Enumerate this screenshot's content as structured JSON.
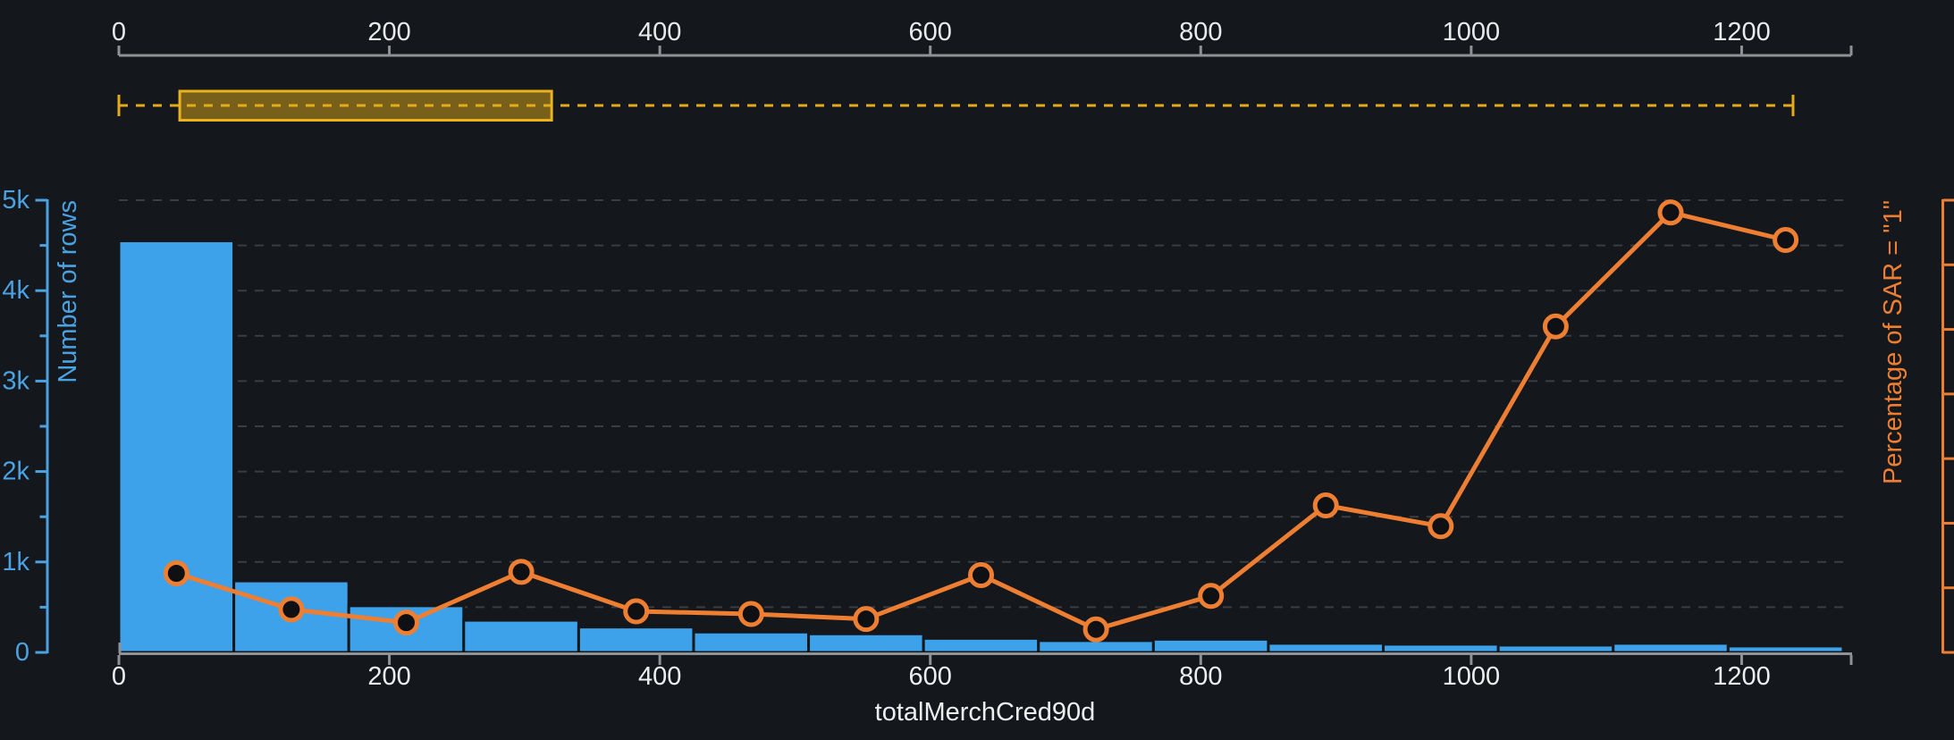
{
  "page": {
    "background": "#14171b"
  },
  "top_ruler": {
    "axis_color": "#8f9295",
    "label_color": "#e9eaeb",
    "tick_values": [
      0,
      200,
      400,
      600,
      800,
      1000,
      1200
    ],
    "tick_labels": [
      "0",
      "200",
      "400",
      "600",
      "800",
      "1000",
      "1200"
    ],
    "range_max": 1281
  },
  "range_brush": {
    "whisker_min": 0,
    "whisker_max": 1238,
    "box_start": 45,
    "box_end": 320,
    "line_color": "#e3aa1c",
    "box_border_color": "#eab31e",
    "box_fill": "rgba(230,175,25,0.48)"
  },
  "chart_data": {
    "type": "bar",
    "subtype": "histogram-with-line-overlay",
    "xlabel": "totalMerchCred90d",
    "ylabel_left": "Number of rows",
    "ylabel_right": "Percentage of SAR = \"1\"",
    "x_range": [
      0,
      1281
    ],
    "x_tick_values": [
      0,
      200,
      400,
      600,
      800,
      1000,
      1200
    ],
    "x_tick_labels": [
      "0",
      "200",
      "400",
      "600",
      "800",
      "1000",
      "1200"
    ],
    "y_left_range": [
      0,
      5000
    ],
    "y_left_tick_values": [
      0,
      1000,
      2000,
      3000,
      4000,
      5000
    ],
    "y_left_tick_labels": [
      "0",
      "1k",
      "2k",
      "3k",
      "4k",
      "5k"
    ],
    "grid": "horizontal dashed every 500 rows",
    "legend_position": "none",
    "bins": {
      "start": 0,
      "width": 85,
      "count": 15
    },
    "categories": [
      "0-85",
      "85-170",
      "170-255",
      "255-340",
      "340-425",
      "425-510",
      "510-595",
      "595-680",
      "680-765",
      "765-850",
      "850-935",
      "935-1020",
      "1020-1105",
      "1105-1190",
      "1190-1275"
    ],
    "series": [
      {
        "name": "Number of rows",
        "type": "bar",
        "color": "#3ea2ea",
        "values": [
          4550,
          790,
          515,
          355,
          280,
          225,
          205,
          155,
          130,
          145,
          100,
          90,
          80,
          100,
          70
        ]
      },
      {
        "name": "Percentage of SAR = \"1\"",
        "type": "line",
        "color": "#ee7e32",
        "axis": "right (ticks unlabeled, 8 ticks)",
        "x_bin_centers": [
          42.5,
          127.5,
          212.5,
          297.5,
          382.5,
          467.5,
          552.5,
          637.5,
          722.5,
          807.5,
          892.5,
          977.5,
          1062.5,
          1147.5,
          1232.5
        ],
        "values_left_axis_equiv": [
          875,
          475,
          330,
          890,
          455,
          425,
          370,
          855,
          255,
          625,
          1625,
          1395,
          3605,
          4865,
          4560
        ]
      }
    ],
    "right_axis": {
      "labeled": false,
      "tick_count": 8,
      "color": "#ee7e32"
    },
    "left_axis_color": "#4aa2e2",
    "gridline_color": "#3a3d41",
    "baseline_color": "#8f9295",
    "marker_fill": "#0e1013"
  }
}
